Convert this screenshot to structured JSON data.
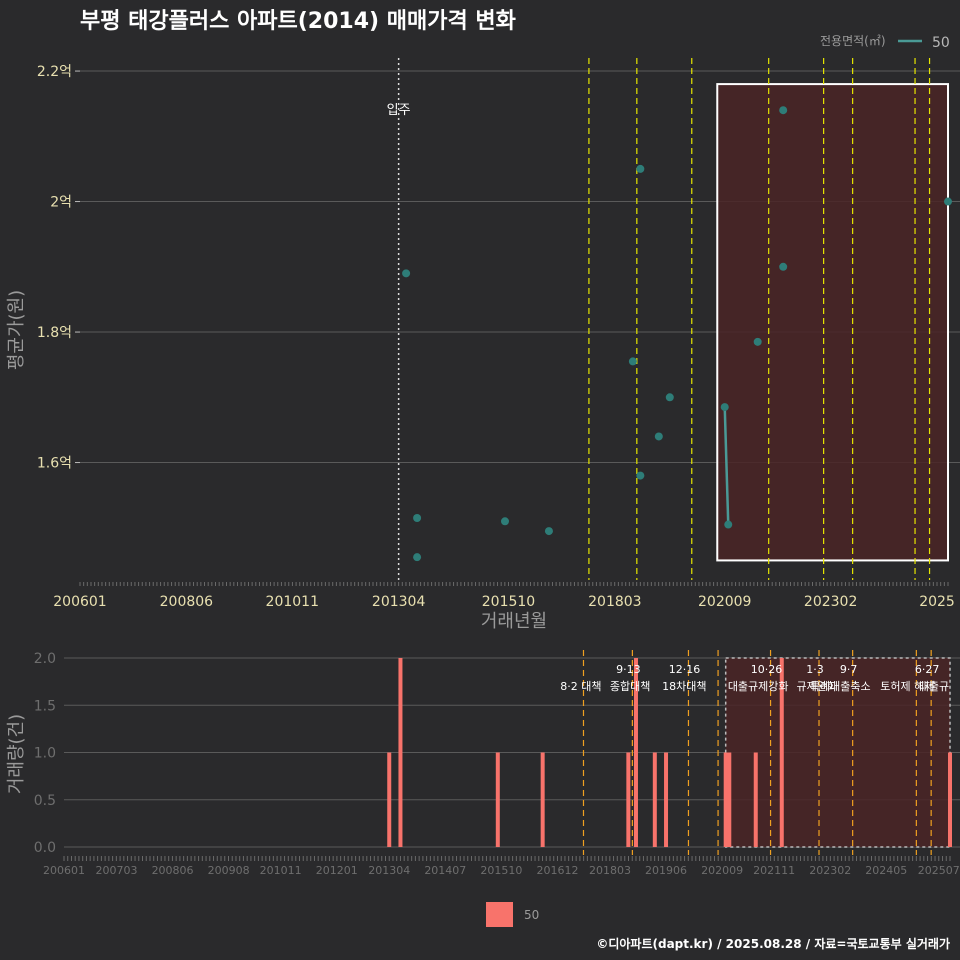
{
  "title": "부평 태강플러스 아파트(2014) 매매가격 변화",
  "footer": "©디아파트(dapt.kr) / 2025.08.28 / 자료=국토교통부 실거래가",
  "colors": {
    "background": "#2a2a2c",
    "point": "#2e7d78",
    "line": "#4a9a96",
    "bar": "#f8736b",
    "highlight_fill": "#4a2426",
    "vline_yellow": "#e6e600",
    "vline_orange": "#f0a020",
    "grid": "#5a5a5a"
  },
  "chart_data": [
    {
      "type": "scatter",
      "title": "부평 태강플러스 아파트(2014) 매매가격 변화",
      "xlabel": "거래년월",
      "ylabel": "평균가(원)",
      "ylim": [
        1.42,
        2.22
      ],
      "yticks": [
        1.6,
        1.8,
        2.0,
        2.2
      ],
      "ytick_labels": [
        "1.6억",
        "1.8억",
        "2억",
        "2.2억"
      ],
      "xlim": [
        2006.0,
        2025.75
      ],
      "xticks": [
        2006.0,
        2008.42,
        2010.83,
        2013.25,
        2015.75,
        2018.17,
        2020.67,
        2023.08,
        2025.5
      ],
      "xtick_labels": [
        "200601",
        "200806",
        "201011",
        "201304",
        "201510",
        "201803",
        "202009",
        "202302",
        "2025"
      ],
      "legend": {
        "title": "전용면적(㎡)",
        "entries": [
          "50"
        ]
      },
      "move_in": {
        "x": 2013.25,
        "label": "입주"
      },
      "highlight": {
        "x_from": 2020.5,
        "x_to": 2025.75,
        "y_from": 1.45,
        "y_to": 2.18
      },
      "vlines": [
        2017.58,
        2018.67,
        2019.92,
        2021.67,
        2022.92,
        2023.58,
        2025.0,
        2025.33
      ],
      "series": [
        {
          "name": "50",
          "points": [
            {
              "x": 2013.42,
              "y": 1.89
            },
            {
              "x": 2013.67,
              "y": 1.455
            },
            {
              "x": 2013.67,
              "y": 1.515
            },
            {
              "x": 2015.67,
              "y": 1.51
            },
            {
              "x": 2016.67,
              "y": 1.495
            },
            {
              "x": 2018.58,
              "y": 1.755
            },
            {
              "x": 2018.75,
              "y": 2.05
            },
            {
              "x": 2018.75,
              "y": 1.58
            },
            {
              "x": 2019.17,
              "y": 1.64
            },
            {
              "x": 2019.42,
              "y": 1.7
            },
            {
              "x": 2020.67,
              "y": 1.685
            },
            {
              "x": 2020.75,
              "y": 1.505
            },
            {
              "x": 2021.42,
              "y": 1.785
            },
            {
              "x": 2022.0,
              "y": 2.14
            },
            {
              "x": 2022.0,
              "y": 1.9
            },
            {
              "x": 2025.75,
              "y": 2.0
            }
          ],
          "line_segment": [
            {
              "x": 2020.67,
              "y": 1.685
            },
            {
              "x": 2020.75,
              "y": 1.505
            }
          ]
        }
      ]
    },
    {
      "type": "bar",
      "xlabel": "",
      "ylabel": "거래량(건)",
      "ylim": [
        0,
        2.0
      ],
      "yticks": [
        0.0,
        0.5,
        1.0,
        1.5,
        2.0
      ],
      "ytick_labels": [
        "0.0",
        "0.5",
        "1.0",
        "1.5",
        "2.0"
      ],
      "xlim": [
        2006.0,
        2025.75
      ],
      "xticks": [
        2006.0,
        2007.17,
        2008.42,
        2009.67,
        2010.83,
        2012.08,
        2013.25,
        2014.5,
        2015.75,
        2017.0,
        2018.17,
        2019.42,
        2020.67,
        2021.83,
        2023.08,
        2024.33,
        2025.5
      ],
      "xtick_labels": [
        "200601",
        "200703",
        "200806",
        "200908",
        "201011",
        "201201",
        "201304",
        "201407",
        "201510",
        "201612",
        "201803",
        "201906",
        "202009",
        "202111",
        "202302",
        "202405",
        "202507"
      ],
      "legend": {
        "entries": [
          "50"
        ]
      },
      "highlight": {
        "x_from": 2020.75,
        "x_to": 2025.75,
        "y_from": 0,
        "y_to": 2.0
      },
      "vlines": [
        2017.58,
        2018.67,
        2019.92,
        2020.58,
        2021.75,
        2022.83,
        2023.58,
        2025.0,
        2025.33
      ],
      "annotations": [
        {
          "x": 2017.58,
          "line1": "",
          "line2": "8·2 대책"
        },
        {
          "x": 2018.67,
          "line1": "9·13",
          "line2": "종합대책"
        },
        {
          "x": 2019.92,
          "line1": "12·16",
          "line2": "18차대책"
        },
        {
          "x": 2021.75,
          "line1": "10·26",
          "line2": "대출규제강화"
        },
        {
          "x": 2022.83,
          "line1": "1·3",
          "line2": "규제완화"
        },
        {
          "x": 2023.58,
          "line1": "9·7",
          "line2": "특례대출축소"
        },
        {
          "x": 2025.0,
          "line1": "",
          "line2": "토허제 해제"
        },
        {
          "x": 2025.33,
          "line1": "6·27",
          "line2": "대출규"
        }
      ],
      "series": [
        {
          "name": "50",
          "bars": [
            {
              "x": 2013.25,
              "value": 1
            },
            {
              "x": 2013.5,
              "value": 2
            },
            {
              "x": 2015.67,
              "value": 1
            },
            {
              "x": 2016.67,
              "value": 1
            },
            {
              "x": 2018.58,
              "value": 1
            },
            {
              "x": 2018.75,
              "value": 2
            },
            {
              "x": 2019.17,
              "value": 1
            },
            {
              "x": 2019.42,
              "value": 1
            },
            {
              "x": 2020.75,
              "value": 1
            },
            {
              "x": 2020.83,
              "value": 1
            },
            {
              "x": 2021.42,
              "value": 1
            },
            {
              "x": 2022.0,
              "value": 2
            },
            {
              "x": 2025.75,
              "value": 1
            }
          ]
        }
      ]
    }
  ]
}
